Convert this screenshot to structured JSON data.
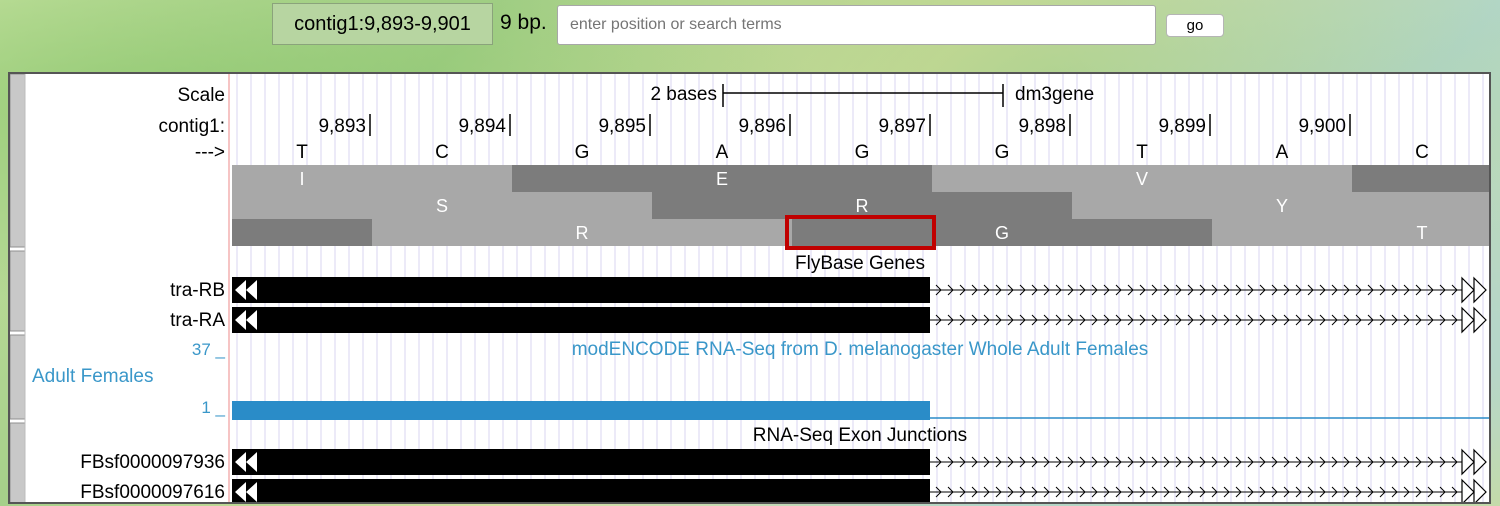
{
  "position": {
    "display": "contig1:9,893-9,901",
    "size": "9 bp."
  },
  "search": {
    "placeholder": "enter position or search terms",
    "go_label": "go"
  },
  "browser": {
    "scale": {
      "label": "Scale",
      "bar_label": "2 bases",
      "assembly": "dm3gene"
    },
    "ruler": {
      "chrom_label": "contig1:",
      "positions": [
        "9,893",
        "9,894",
        "9,895",
        "9,896",
        "9,897",
        "9,898",
        "9,899",
        "9,900"
      ]
    },
    "strand_label": "--->",
    "bases": [
      "T",
      "C",
      "G",
      "A",
      "G",
      "G",
      "T",
      "A",
      "C"
    ],
    "translation": {
      "frame1": [
        "I",
        "E",
        "V"
      ],
      "frame2": [
        "S",
        "R",
        "Y"
      ],
      "frame3": [
        "R",
        "G",
        "T"
      ]
    },
    "flybase": {
      "title": "FlyBase Genes",
      "genes": [
        "tra-RB",
        "tra-RA"
      ]
    },
    "rnaseq": {
      "title": "modENCODE RNA-Seq from D. melanogaster Whole Adult Females",
      "side_label": "Adult Females",
      "ymax": "37 _",
      "ymin": "1 _"
    },
    "junctions": {
      "title": "RNA-Seq Exon Junctions",
      "features": [
        "FBsf0000097936",
        "FBsf0000097616"
      ]
    }
  },
  "colors": {
    "highlight": "#c00000",
    "signal": "#2a8cc8",
    "label_blue": "#3a97c9"
  }
}
